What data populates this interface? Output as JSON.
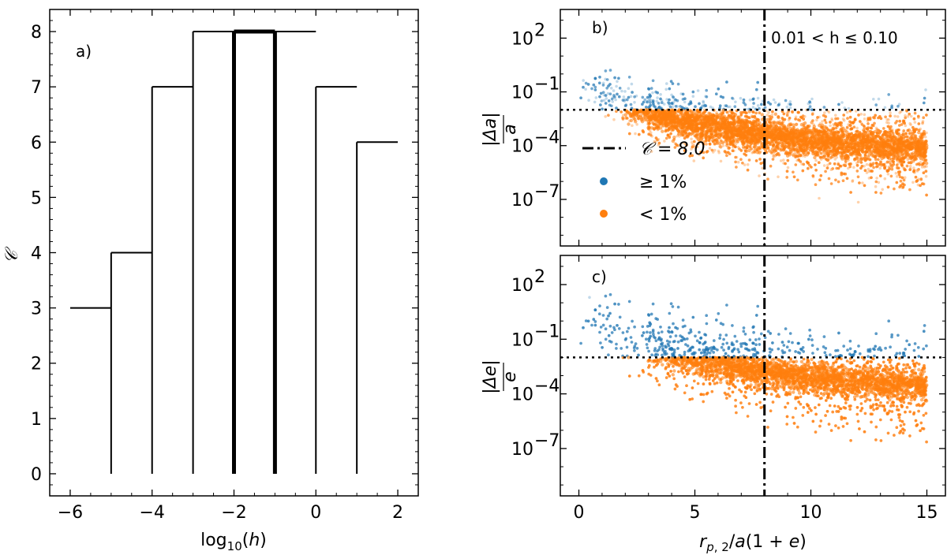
{
  "chart_data": [
    {
      "type": "step",
      "panel_label": "a)",
      "xlabel": "log₁₀(h)",
      "ylabel": "𝒞",
      "xlim": [
        -6.5,
        2.5
      ],
      "ylim": [
        -0.4,
        8.4
      ],
      "xticks": [
        -6,
        -4,
        -2,
        0,
        2
      ],
      "xtick_labels": [
        "−6",
        "−4",
        "−2",
        "0",
        "2"
      ],
      "yticks": [
        0,
        1,
        2,
        3,
        4,
        5,
        6,
        7,
        8
      ],
      "ytick_labels": [
        "0",
        "1",
        "2",
        "3",
        "4",
        "5",
        "6",
        "7",
        "8"
      ],
      "bins": [
        {
          "x0": -6,
          "x1": -5,
          "value": 3
        },
        {
          "x0": -5,
          "x1": -4,
          "value": 4
        },
        {
          "x0": -4,
          "x1": -3,
          "value": 7
        },
        {
          "x0": -3,
          "x1": -2,
          "value": 8
        },
        {
          "x0": -2,
          "x1": -1,
          "value": 8,
          "highlighted": true
        },
        {
          "x0": -1,
          "x1": 0,
          "value": 8
        },
        {
          "x0": 0,
          "x1": 1,
          "value": 7
        },
        {
          "x0": 1,
          "x1": 2,
          "value": 6
        }
      ]
    },
    {
      "type": "scatter",
      "panel_label": "b)",
      "annotation": "0.01 < h ≤ 0.10",
      "ylabel_num": "|Δa|",
      "ylabel_den": "a",
      "yscale": "log",
      "xlim": [
        -0.8,
        15.8
      ],
      "ylog_range": [
        -9.6,
        3.6
      ],
      "ytick_exponents": [
        -7,
        -4,
        -1,
        2
      ],
      "ytick_base": [
        "10",
        "10",
        "10",
        "10"
      ],
      "ytick_exp_labels": [
        "−7",
        "−4",
        "−1",
        "2"
      ],
      "threshold_y": 0.01,
      "vline_x": 8.0,
      "legend": [
        {
          "label": "𝒞 = 8.0",
          "style": "dashdot",
          "color": "#000000"
        },
        {
          "label": "≥ 1%",
          "style": "point",
          "color": "#1f77b4"
        },
        {
          "label": "< 1%",
          "style": "point",
          "color": "#ff7f0e"
        }
      ],
      "trend": {
        "x": [
          0,
          1,
          2,
          3,
          4,
          6,
          8,
          10,
          12,
          15
        ],
        "log10_center": [
          0.0,
          -1.0,
          -1.6,
          -2.1,
          -2.5,
          -3.0,
          -3.4,
          -3.7,
          -3.9,
          -4.1
        ]
      }
    },
    {
      "type": "scatter",
      "panel_label": "c)",
      "xlabel": "r_{p,2}/a(1+e)",
      "ylabel_num": "|Δe|",
      "ylabel_den": "e",
      "yscale": "log",
      "xlim": [
        -0.8,
        15.8
      ],
      "ylog_range": [
        -9.6,
        3.6
      ],
      "xticks": [
        0,
        5,
        10,
        15
      ],
      "xtick_labels": [
        "0",
        "5",
        "10",
        "15"
      ],
      "ytick_exponents": [
        -7,
        -4,
        -1,
        2
      ],
      "ytick_base": [
        "10",
        "10",
        "10",
        "10"
      ],
      "ytick_exp_labels": [
        "−7",
        "−4",
        "−1",
        "2"
      ],
      "threshold_y": 0.01,
      "vline_x": 8.0,
      "trend": {
        "x": [
          0,
          1,
          2,
          3,
          4,
          6,
          8,
          10,
          12,
          15
        ],
        "log10_center": [
          0.5,
          -0.2,
          -0.8,
          -1.3,
          -1.7,
          -2.3,
          -2.8,
          -3.1,
          -3.3,
          -3.5
        ]
      }
    }
  ],
  "colors": {
    "blue": "#1f77b4",
    "orange": "#ff7f0e",
    "axis": "#000000"
  }
}
